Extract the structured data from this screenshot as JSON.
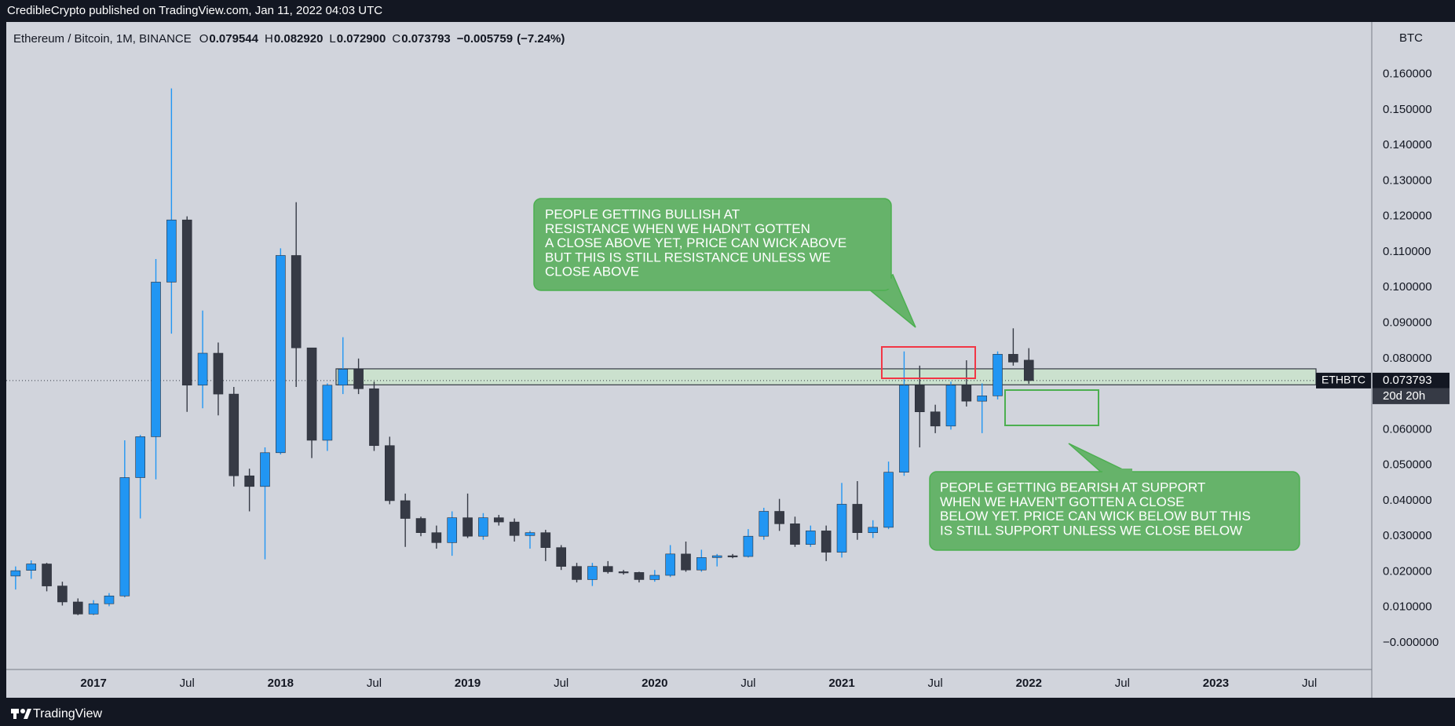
{
  "header": "CredibleCrypto published on TradingView.com, Jan 11, 2022 04:03 UTC",
  "footer": "TradingView",
  "chart_data": {
    "type": "candlestick",
    "symbol": "ETHBTC",
    "countdown": "20d 20h",
    "y_unit": "BTC",
    "legend": {
      "name": "Ethereum / Bitcoin, 1M, BINANCE",
      "keys": [
        "O",
        "H",
        "L",
        "C"
      ],
      "values": [
        {
          "value": 0.079544,
          "label": "0.079544"
        },
        {
          "value": 0.08292,
          "label": "0.082920"
        },
        {
          "value": 0.0729,
          "label": "0.072900"
        },
        {
          "value": 0.073793,
          "label": "0.073793"
        }
      ],
      "change": {
        "value": -0.005759,
        "label": "−0.005759"
      },
      "change_pct": {
        "value": -7.24,
        "label": "(−7.24%)"
      }
    },
    "x": [
      "2016-08",
      "2016-09",
      "2016-10",
      "2016-11",
      "2016-12",
      "2017-01",
      "2017-02",
      "2017-03",
      "2017-04",
      "2017-05",
      "2017-06",
      "2017-07",
      "2017-08",
      "2017-09",
      "2017-10",
      "2017-11",
      "2017-12",
      "2018-01",
      "2018-02",
      "2018-03",
      "2018-04",
      "2018-05",
      "2018-06",
      "2018-07",
      "2018-08",
      "2018-09",
      "2018-10",
      "2018-11",
      "2018-12",
      "2019-01",
      "2019-02",
      "2019-03",
      "2019-04",
      "2019-05",
      "2019-06",
      "2019-07",
      "2019-08",
      "2019-09",
      "2019-10",
      "2019-11",
      "2019-12",
      "2020-01",
      "2020-02",
      "2020-03",
      "2020-04",
      "2020-05",
      "2020-06",
      "2020-07",
      "2020-08",
      "2020-09",
      "2020-10",
      "2020-11",
      "2020-12",
      "2021-01",
      "2021-02",
      "2021-03",
      "2021-04",
      "2021-05",
      "2021-06",
      "2021-07",
      "2021-08",
      "2021-09",
      "2021-10",
      "2021-11",
      "2021-12",
      "2022-01"
    ],
    "open": [
      0.0188,
      0.0204,
      0.0222,
      0.016,
      0.0115,
      0.0081,
      0.011,
      0.0132,
      0.0465,
      0.058,
      0.1015,
      0.119,
      0.0725,
      0.0815,
      0.07,
      0.047,
      0.044,
      0.0535,
      0.109,
      0.083,
      0.057,
      0.0725,
      0.077,
      0.0715,
      0.0555,
      0.04,
      0.035,
      0.031,
      0.0282,
      0.0352,
      0.03,
      0.0352,
      0.034,
      0.0302,
      0.031,
      0.0268,
      0.0215,
      0.0178,
      0.0215,
      0.02,
      0.0198,
      0.0178,
      0.019,
      0.025,
      0.0205,
      0.024,
      0.0245,
      0.0243,
      0.03,
      0.037,
      0.0335,
      0.0277,
      0.0315,
      0.0255,
      0.039,
      0.031,
      0.0325,
      0.048,
      0.0725,
      0.065,
      0.061,
      0.0725,
      0.068,
      0.0695,
      0.0812,
      0.079544
    ],
    "high": [
      0.0215,
      0.0232,
      0.0225,
      0.0172,
      0.0125,
      0.012,
      0.014,
      0.057,
      0.0585,
      0.108,
      0.156,
      0.12,
      0.0935,
      0.0845,
      0.072,
      0.049,
      0.055,
      0.111,
      0.124,
      0.083,
      0.073,
      0.086,
      0.08,
      0.0735,
      0.058,
      0.042,
      0.0355,
      0.033,
      0.037,
      0.042,
      0.0365,
      0.036,
      0.035,
      0.0315,
      0.0318,
      0.0275,
      0.0225,
      0.0225,
      0.023,
      0.0205,
      0.02,
      0.0205,
      0.0275,
      0.0285,
      0.0262,
      0.025,
      0.025,
      0.032,
      0.038,
      0.0405,
      0.0355,
      0.033,
      0.033,
      0.045,
      0.0455,
      0.0345,
      0.051,
      0.082,
      0.078,
      0.067,
      0.0735,
      0.0795,
      0.073,
      0.082,
      0.0885,
      0.08292
    ],
    "low": [
      0.015,
      0.018,
      0.0145,
      0.0105,
      0.0078,
      0.0078,
      0.0103,
      0.0128,
      0.035,
      0.046,
      0.087,
      0.065,
      0.066,
      0.064,
      0.044,
      0.037,
      0.0235,
      0.053,
      0.072,
      0.052,
      0.054,
      0.07,
      0.07,
      0.054,
      0.039,
      0.027,
      0.03,
      0.0265,
      0.0245,
      0.0295,
      0.029,
      0.033,
      0.0285,
      0.0265,
      0.023,
      0.0205,
      0.017,
      0.016,
      0.0195,
      0.0192,
      0.017,
      0.0172,
      0.0185,
      0.02,
      0.02,
      0.0215,
      0.0238,
      0.024,
      0.029,
      0.0315,
      0.027,
      0.027,
      0.023,
      0.024,
      0.029,
      0.0295,
      0.032,
      0.047,
      0.055,
      0.059,
      0.06,
      0.0665,
      0.059,
      0.0685,
      0.078,
      0.0729
    ],
    "close": [
      0.0203,
      0.0222,
      0.016,
      0.0115,
      0.0081,
      0.011,
      0.0132,
      0.0465,
      0.058,
      0.1015,
      0.119,
      0.0725,
      0.0815,
      0.07,
      0.047,
      0.044,
      0.0535,
      0.109,
      0.083,
      0.057,
      0.0725,
      0.077,
      0.0715,
      0.0555,
      0.04,
      0.035,
      0.031,
      0.0282,
      0.0352,
      0.03,
      0.0352,
      0.034,
      0.0302,
      0.031,
      0.0268,
      0.0215,
      0.0178,
      0.0215,
      0.02,
      0.0198,
      0.0178,
      0.019,
      0.025,
      0.0205,
      0.024,
      0.0245,
      0.0243,
      0.03,
      0.037,
      0.0335,
      0.0277,
      0.0315,
      0.0255,
      0.039,
      0.031,
      0.0325,
      0.048,
      0.0725,
      0.065,
      0.061,
      0.0725,
      0.068,
      0.0695,
      0.0812,
      0.079,
      0.073793
    ],
    "up_color": "#2196f3",
    "down_color": "#363a45",
    "xlim": [
      "2016-07",
      "2023-11"
    ],
    "xticks": [
      {
        "value": "2017-01",
        "label": "2017"
      },
      {
        "value": "2017-07",
        "label": "Jul"
      },
      {
        "value": "2018-01",
        "label": "2018"
      },
      {
        "value": "2018-07",
        "label": "Jul"
      },
      {
        "value": "2019-01",
        "label": "2019"
      },
      {
        "value": "2019-07",
        "label": "Jul"
      },
      {
        "value": "2020-01",
        "label": "2020"
      },
      {
        "value": "2020-07",
        "label": "Jul"
      },
      {
        "value": "2021-01",
        "label": "2021"
      },
      {
        "value": "2021-07",
        "label": "Jul"
      },
      {
        "value": "2022-01",
        "label": "2022"
      },
      {
        "value": "2022-07",
        "label": "Jul"
      },
      {
        "value": "2023-01",
        "label": "2023"
      },
      {
        "value": "2023-07",
        "label": "Jul"
      }
    ],
    "ylim": [
      -0.0075,
      0.1747
    ],
    "yticks": [
      {
        "value": 0,
        "label": "−0.000000"
      },
      {
        "value": 0.01,
        "label": "0.010000"
      },
      {
        "value": 0.02,
        "label": "0.020000"
      },
      {
        "value": 0.03,
        "label": "0.030000"
      },
      {
        "value": 0.04,
        "label": "0.040000"
      },
      {
        "value": 0.05,
        "label": "0.050000"
      },
      {
        "value": 0.06,
        "label": "0.060000"
      },
      {
        "value": 0.07,
        "label": "0.070000"
      },
      {
        "value": 0.08,
        "label": "0.080000"
      },
      {
        "value": 0.09,
        "label": "0.090000"
      },
      {
        "value": 0.1,
        "label": "0.100000"
      },
      {
        "value": 0.11,
        "label": "0.110000"
      },
      {
        "value": 0.12,
        "label": "0.120000"
      },
      {
        "value": 0.13,
        "label": "0.130000"
      },
      {
        "value": 0.14,
        "label": "0.140000"
      },
      {
        "value": 0.15,
        "label": "0.150000"
      },
      {
        "value": 0.16,
        "label": "0.160000"
      }
    ],
    "grid": false,
    "zone": {
      "low": 0.0726,
      "high": 0.0771
    },
    "annotations": [
      {
        "lines": [
          "PEOPLE GETTING BULLISH AT",
          "RESISTANCE WHEN WE HADN'T GOTTEN",
          "A CLOSE ABOVE YET, PRICE CAN WICK ABOVE",
          "BUT THIS IS STILL RESISTANCE UNLESS WE",
          "CLOSE ABOVE"
        ]
      },
      {
        "lines": [
          "PEOPLE GETTING BEARISH AT SUPPORT",
          "WHEN WE HAVEN'T GOTTEN A CLOSE",
          "BELOW YET. PRICE CAN WICK BELOW BUT THIS",
          "IS STILL SUPPORT UNLESS WE CLOSE BELOW"
        ]
      }
    ]
  }
}
